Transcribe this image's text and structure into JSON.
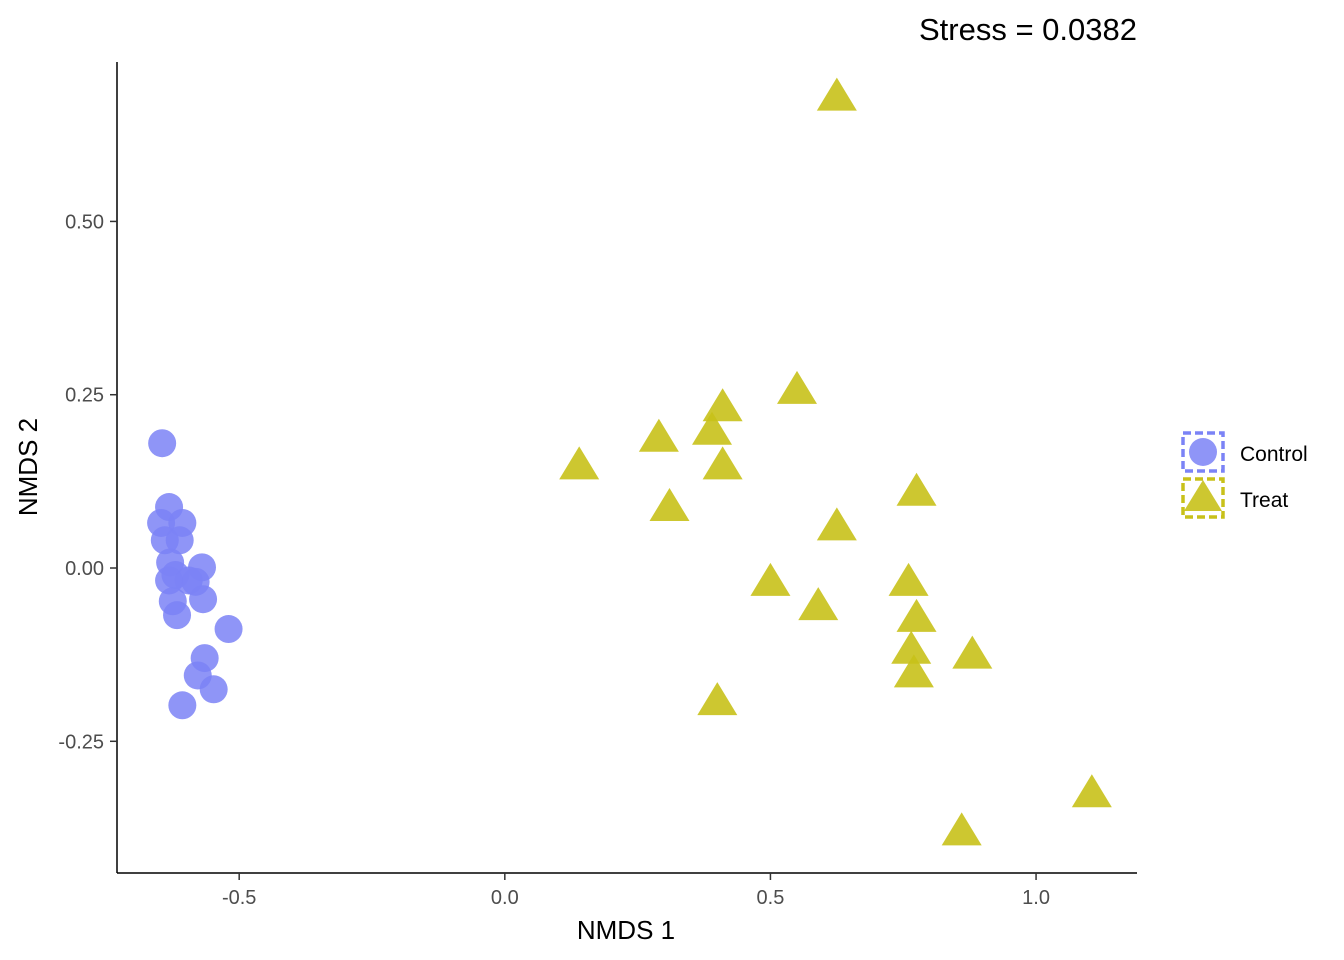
{
  "chart_data": {
    "type": "scatter",
    "title": "Stress = 0.0382",
    "xlabel": "NMDS 1",
    "ylabel": "NMDS 2",
    "xlim": [
      -0.73,
      1.19
    ],
    "ylim": [
      -0.44,
      0.73
    ],
    "xticks": [
      -0.5,
      0.0,
      0.5,
      1.0
    ],
    "xtick_labels": [
      "-0.5",
      "0.0",
      "0.5",
      "1.0"
    ],
    "yticks": [
      -0.25,
      0.0,
      0.25,
      0.5
    ],
    "ytick_labels": [
      "-0.25",
      "0.00",
      "0.25",
      "0.50"
    ],
    "grid": false,
    "legend_position": "right",
    "series": [
      {
        "name": "Control",
        "marker": "circle",
        "color": "#7b83f6",
        "points": [
          [
            -0.645,
            0.18
          ],
          [
            -0.632,
            0.088
          ],
          [
            -0.647,
            0.065
          ],
          [
            -0.607,
            0.065
          ],
          [
            -0.64,
            0.04
          ],
          [
            -0.612,
            0.04
          ],
          [
            -0.63,
            0.008
          ],
          [
            -0.57,
            0.001
          ],
          [
            -0.62,
            -0.01
          ],
          [
            -0.632,
            -0.018
          ],
          [
            -0.595,
            -0.018
          ],
          [
            -0.582,
            -0.02
          ],
          [
            -0.568,
            -0.045
          ],
          [
            -0.625,
            -0.048
          ],
          [
            -0.617,
            -0.068
          ],
          [
            -0.52,
            -0.088
          ],
          [
            -0.565,
            -0.13
          ],
          [
            -0.578,
            -0.155
          ],
          [
            -0.548,
            -0.175
          ],
          [
            -0.607,
            -0.198
          ]
        ]
      },
      {
        "name": "Treat",
        "marker": "triangle",
        "color": "#c8c11a",
        "points": [
          [
            0.625,
            0.68
          ],
          [
            0.55,
            0.257
          ],
          [
            0.41,
            0.232
          ],
          [
            0.39,
            0.198
          ],
          [
            0.29,
            0.188
          ],
          [
            0.14,
            0.148
          ],
          [
            0.41,
            0.148
          ],
          [
            0.31,
            0.088
          ],
          [
            0.775,
            0.11
          ],
          [
            0.625,
            0.06
          ],
          [
            0.5,
            -0.02
          ],
          [
            0.76,
            -0.02
          ],
          [
            0.59,
            -0.055
          ],
          [
            0.775,
            -0.072
          ],
          [
            0.765,
            -0.118
          ],
          [
            0.88,
            -0.125
          ],
          [
            0.77,
            -0.152
          ],
          [
            0.4,
            -0.192
          ],
          [
            1.105,
            -0.325
          ],
          [
            0.86,
            -0.38
          ]
        ]
      }
    ]
  }
}
